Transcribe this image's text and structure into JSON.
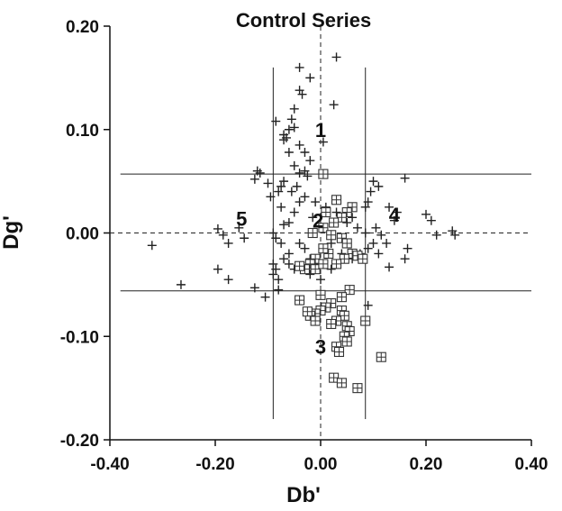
{
  "chart_data": {
    "type": "scatter",
    "title": "Control Series",
    "xlabel": "Db'",
    "ylabel": "Dg'",
    "xlim": [
      -0.4,
      0.4
    ],
    "ylim": [
      -0.2,
      0.2
    ],
    "x_ticks": [
      "-0.40",
      "-0.20",
      "0.00",
      "0.20",
      "0.40"
    ],
    "y_ticks": [
      "0.20",
      "0.10",
      "0.00",
      "-0.10",
      "-0.20"
    ],
    "grid": false,
    "reference_lines": {
      "dashed_x": 0.0,
      "dashed_y": 0.0,
      "solid_x": [
        -0.09,
        0.085
      ],
      "solid_y": [
        0.057,
        -0.056
      ]
    },
    "region_labels": [
      {
        "text": "1",
        "x": 0.0,
        "y": 0.1
      },
      {
        "text": "2",
        "x": -0.005,
        "y": 0.012
      },
      {
        "text": "3",
        "x": 0.0,
        "y": -0.11
      },
      {
        "text": "4",
        "x": 0.14,
        "y": 0.018
      },
      {
        "text": "5",
        "x": -0.15,
        "y": 0.014
      }
    ],
    "series": [
      {
        "marker": "plus",
        "points": [
          [
            0.03,
            0.17
          ],
          [
            -0.04,
            0.16
          ],
          [
            -0.02,
            0.15
          ],
          [
            -0.04,
            0.138
          ],
          [
            -0.035,
            0.134
          ],
          [
            0.025,
            0.124
          ],
          [
            -0.05,
            0.12
          ],
          [
            -0.055,
            0.11
          ],
          [
            -0.085,
            0.108
          ],
          [
            -0.06,
            0.1
          ],
          [
            -0.05,
            0.102
          ],
          [
            -0.07,
            0.095
          ],
          [
            -0.065,
            0.092
          ],
          [
            -0.07,
            0.09
          ],
          [
            -0.04,
            0.085
          ],
          [
            -0.03,
            0.078
          ],
          [
            -0.06,
            0.078
          ],
          [
            0.005,
            0.088
          ],
          [
            -0.02,
            0.07
          ],
          [
            -0.05,
            0.065
          ],
          [
            -0.03,
            0.06
          ],
          [
            -0.04,
            0.058
          ],
          [
            -0.025,
            0.055
          ],
          [
            -0.12,
            0.06
          ],
          [
            -0.115,
            0.058
          ],
          [
            -0.125,
            0.052
          ],
          [
            -0.1,
            0.048
          ],
          [
            -0.07,
            0.05
          ],
          [
            -0.075,
            0.045
          ],
          [
            -0.055,
            0.04
          ],
          [
            -0.045,
            0.045
          ],
          [
            -0.08,
            0.04
          ],
          [
            -0.095,
            0.035
          ],
          [
            -0.04,
            0.03
          ],
          [
            -0.03,
            0.035
          ],
          [
            -0.075,
            0.025
          ],
          [
            -0.05,
            0.02
          ],
          [
            -0.06,
            0.01
          ],
          [
            -0.07,
            0.008
          ],
          [
            -0.09,
            0.0
          ],
          [
            -0.085,
            -0.005
          ],
          [
            -0.075,
            -0.01
          ],
          [
            -0.04,
            -0.01
          ],
          [
            -0.03,
            -0.015
          ],
          [
            -0.06,
            -0.02
          ],
          [
            -0.07,
            -0.025
          ],
          [
            -0.09,
            -0.03
          ],
          [
            -0.085,
            -0.035
          ],
          [
            -0.09,
            -0.04
          ],
          [
            -0.08,
            -0.045
          ],
          [
            -0.06,
            -0.03
          ],
          [
            -0.05,
            -0.035
          ],
          [
            -0.02,
            -0.025
          ],
          [
            -0.01,
            -0.03
          ],
          [
            -0.195,
            0.004
          ],
          [
            -0.185,
            -0.002
          ],
          [
            -0.175,
            -0.01
          ],
          [
            -0.155,
            0.005
          ],
          [
            -0.145,
            -0.005
          ],
          [
            -0.32,
            -0.012
          ],
          [
            -0.195,
            -0.035
          ],
          [
            -0.175,
            -0.045
          ],
          [
            -0.265,
            -0.05
          ],
          [
            -0.125,
            -0.053
          ],
          [
            -0.105,
            -0.062
          ],
          [
            -0.08,
            -0.055
          ],
          [
            0.1,
            0.05
          ],
          [
            0.11,
            0.045
          ],
          [
            0.095,
            0.04
          ],
          [
            0.16,
            0.053
          ],
          [
            0.09,
            0.03
          ],
          [
            0.085,
            0.025
          ],
          [
            0.13,
            0.025
          ],
          [
            0.145,
            0.02
          ],
          [
            0.14,
            0.012
          ],
          [
            0.105,
            0.005
          ],
          [
            0.115,
            -0.002
          ],
          [
            0.125,
            -0.01
          ],
          [
            0.13,
            -0.033
          ],
          [
            0.11,
            -0.02
          ],
          [
            0.165,
            -0.015
          ],
          [
            0.16,
            -0.025
          ],
          [
            0.2,
            0.018
          ],
          [
            0.21,
            0.012
          ],
          [
            0.22,
            -0.002
          ],
          [
            0.25,
            0.002
          ],
          [
            0.255,
            -0.002
          ],
          [
            0.085,
            0.0
          ],
          [
            0.09,
            -0.015
          ],
          [
            0.1,
            -0.01
          ],
          [
            0.07,
            0.005
          ],
          [
            0.06,
            0.015
          ],
          [
            0.05,
            0.01
          ],
          [
            0.03,
            0.02
          ],
          [
            0.01,
            0.025
          ],
          [
            -0.01,
            0.03
          ],
          [
            -0.015,
            0.015
          ],
          [
            0.02,
            -0.01
          ],
          [
            0.04,
            -0.02
          ],
          [
            0.06,
            -0.025
          ],
          [
            0.075,
            -0.02
          ],
          [
            0.09,
            -0.07
          ],
          [
            -0.02,
            -0.04
          ],
          [
            0.0,
            -0.045
          ],
          [
            0.02,
            -0.035
          ]
        ]
      },
      {
        "marker": "boxed-plus",
        "points": [
          [
            0.005,
            0.057
          ],
          [
            0.03,
            0.032
          ],
          [
            0.06,
            0.025
          ],
          [
            0.05,
            0.02
          ],
          [
            0.04,
            0.015
          ],
          [
            0.025,
            0.01
          ],
          [
            0.01,
            0.02
          ],
          [
            -0.015,
            0.0
          ],
          [
            0.005,
            0.005
          ],
          [
            0.02,
            -0.002
          ],
          [
            0.04,
            -0.005
          ],
          [
            0.05,
            -0.01
          ],
          [
            0.06,
            -0.02
          ],
          [
            0.07,
            -0.022
          ],
          [
            0.08,
            -0.025
          ],
          [
            0.045,
            -0.025
          ],
          [
            0.03,
            -0.03
          ],
          [
            0.015,
            -0.02
          ],
          [
            0.005,
            -0.015
          ],
          [
            -0.01,
            -0.025
          ],
          [
            -0.02,
            -0.03
          ],
          [
            -0.03,
            -0.035
          ],
          [
            -0.04,
            -0.032
          ],
          [
            -0.01,
            -0.035
          ],
          [
            0.005,
            -0.03
          ],
          [
            0.0,
            -0.06
          ],
          [
            0.055,
            -0.055
          ],
          [
            0.04,
            -0.062
          ],
          [
            0.02,
            -0.068
          ],
          [
            0.01,
            -0.072
          ],
          [
            0.0,
            -0.075
          ],
          [
            -0.01,
            -0.078
          ],
          [
            -0.02,
            -0.08
          ],
          [
            -0.025,
            -0.076
          ],
          [
            0.04,
            -0.075
          ],
          [
            0.045,
            -0.08
          ],
          [
            0.03,
            -0.085
          ],
          [
            0.02,
            -0.088
          ],
          [
            0.05,
            -0.09
          ],
          [
            0.055,
            -0.095
          ],
          [
            0.045,
            -0.1
          ],
          [
            0.05,
            -0.105
          ],
          [
            0.03,
            -0.11
          ],
          [
            0.035,
            -0.115
          ],
          [
            -0.04,
            -0.065
          ],
          [
            0.085,
            -0.085
          ],
          [
            0.115,
            -0.12
          ],
          [
            0.025,
            -0.14
          ],
          [
            0.04,
            -0.145
          ],
          [
            0.07,
            -0.15
          ],
          [
            -0.01,
            -0.085
          ]
        ]
      }
    ]
  }
}
